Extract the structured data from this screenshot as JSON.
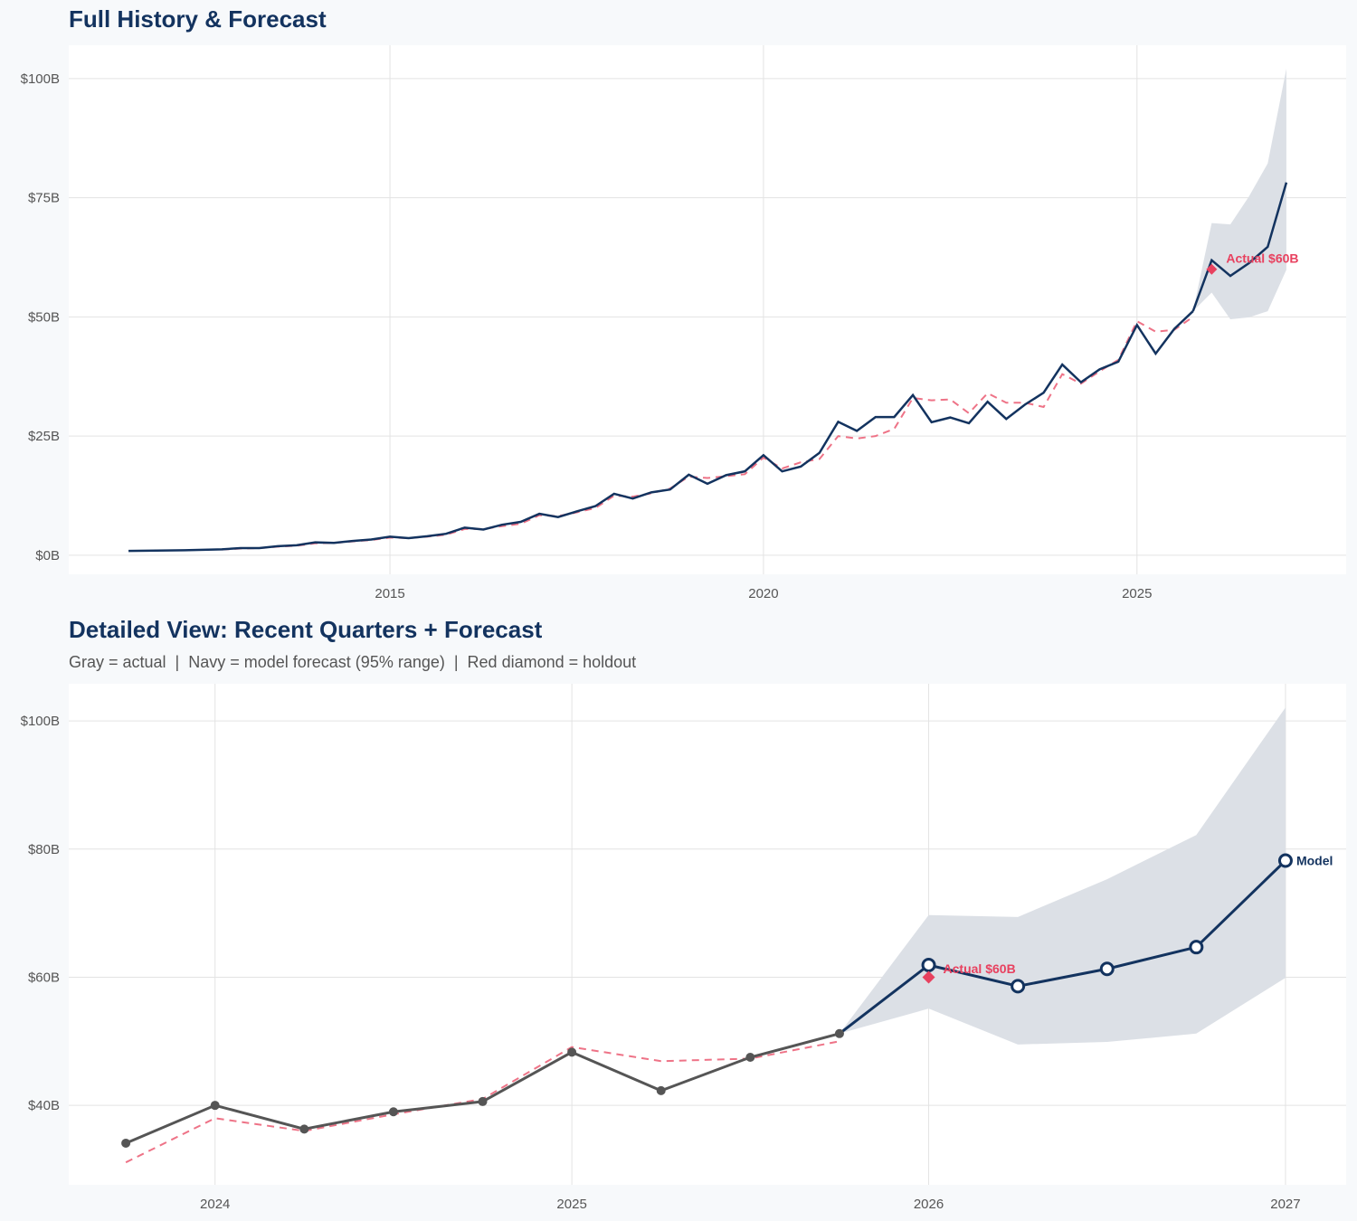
{
  "colors": {
    "navy": "#13335f",
    "gray": "#555555",
    "red": "#e8415f",
    "fitted": "#ee7387",
    "band": "#dce0e6"
  },
  "chart_data": [
    {
      "type": "line",
      "title": "Full History & Forecast",
      "xlim": [
        2010.7,
        2027.8
      ],
      "ylim": [
        -4,
        107
      ],
      "x_ticks": [
        {
          "value": 2015,
          "label": "2015"
        },
        {
          "value": 2020,
          "label": "2020"
        },
        {
          "value": 2025,
          "label": "2025"
        }
      ],
      "y_ticks": [
        {
          "value": 0,
          "label": "$0B"
        },
        {
          "value": 25,
          "label": "$25B"
        },
        {
          "value": 50,
          "label": "$50B"
        },
        {
          "value": 75,
          "label": "$75B"
        },
        {
          "value": 100,
          "label": "$100B"
        }
      ],
      "grid": true,
      "actual": {
        "x": [
          2011.5,
          2011.75,
          2012,
          2012.25,
          2012.5,
          2012.75,
          2013,
          2013.25,
          2013.5,
          2013.75,
          2014,
          2014.25,
          2014.5,
          2014.75,
          2015,
          2015.25,
          2015.5,
          2015.75,
          2016,
          2016.25,
          2016.5,
          2016.75,
          2017,
          2017.25,
          2017.5,
          2017.75,
          2018,
          2018.25,
          2018.5,
          2018.75,
          2019,
          2019.25,
          2019.5,
          2019.75,
          2020,
          2020.25,
          2020.5,
          2020.75,
          2021,
          2021.25,
          2021.5,
          2021.75,
          2022,
          2022.25,
          2022.5,
          2022.75,
          2023,
          2023.25,
          2023.5,
          2023.75,
          2024,
          2024.25,
          2024.5,
          2024.75,
          2025,
          2025.25,
          2025.5,
          2025.75
        ],
        "y": [
          0.9,
          0.95,
          1.0,
          1.05,
          1.15,
          1.25,
          1.5,
          1.5,
          1.9,
          2.1,
          2.7,
          2.6,
          3.0,
          3.3,
          3.9,
          3.6,
          4.0,
          4.5,
          5.8,
          5.4,
          6.4,
          7.0,
          8.7,
          8.0,
          9.2,
          10.3,
          12.9,
          11.9,
          13.2,
          13.8,
          16.9,
          15.0,
          16.8,
          17.6,
          21.0,
          17.6,
          18.6,
          21.5,
          28.0,
          26.1,
          29.0,
          29.0,
          33.6,
          27.9,
          28.9,
          27.7,
          32.2,
          28.6,
          31.6,
          34.1,
          40.0,
          36.3,
          39.0,
          40.6,
          48.3,
          42.3,
          47.5,
          51.2
        ]
      },
      "fitted": {
        "x": [
          2012.75,
          2013,
          2013.25,
          2013.5,
          2013.75,
          2014,
          2014.25,
          2014.5,
          2014.75,
          2015,
          2015.25,
          2015.5,
          2015.75,
          2016,
          2016.25,
          2016.5,
          2016.75,
          2017,
          2017.25,
          2017.5,
          2017.75,
          2018,
          2018.25,
          2018.5,
          2018.75,
          2019,
          2019.25,
          2019.5,
          2019.75,
          2020,
          2020.25,
          2020.5,
          2020.75,
          2021,
          2021.25,
          2021.5,
          2021.75,
          2022,
          2022.25,
          2022.5,
          2022.75,
          2023,
          2023.25,
          2023.5,
          2023.75,
          2024,
          2024.25,
          2024.5,
          2024.75,
          2025,
          2025.25,
          2025.5,
          2025.75
        ],
        "y": [
          1.2,
          1.4,
          1.5,
          1.8,
          2.0,
          2.5,
          2.6,
          2.9,
          3.2,
          3.7,
          3.6,
          3.9,
          4.3,
          5.5,
          5.5,
          6.1,
          6.6,
          8.4,
          8.2,
          9.0,
          9.9,
          12.5,
          12.3,
          13.0,
          14.0,
          16.5,
          16.2,
          16.6,
          17.0,
          20.5,
          18.2,
          19.5,
          20.2,
          25.0,
          24.5,
          25.0,
          26.5,
          33.0,
          32.5,
          32.7,
          29.8,
          34.0,
          32.0,
          32.0,
          31.1,
          38.0,
          36.0,
          38.6,
          41.0,
          49.1,
          46.9,
          47.3,
          50.0
        ]
      },
      "forecast": {
        "x": [
          2025.75,
          2026,
          2026.25,
          2026.5,
          2026.75,
          2027
        ],
        "y": [
          51.2,
          61.9,
          58.6,
          61.3,
          64.7,
          78.2
        ],
        "lower": [
          51.2,
          55.1,
          49.5,
          49.9,
          51.2,
          59.9
        ],
        "upper": [
          51.2,
          69.7,
          69.4,
          75.3,
          82.2,
          102.1
        ]
      },
      "holdout": {
        "x": 2026,
        "y": 60,
        "label": "Actual $60B"
      }
    },
    {
      "type": "line",
      "title": "Detailed View: Recent Quarters + Forecast",
      "subtitle": "Gray = actual  |  Navy = model forecast (95% range)  |  Red diamond = holdout",
      "xlim": [
        2023.59,
        2027.17
      ],
      "ylim": [
        27.6,
        105.8
      ],
      "x_ticks": [
        {
          "value": 2024,
          "label": "2024"
        },
        {
          "value": 2025,
          "label": "2025"
        },
        {
          "value": 2026,
          "label": "2026"
        },
        {
          "value": 2027,
          "label": "2027"
        }
      ],
      "y_ticks": [
        {
          "value": 40,
          "label": "$40B"
        },
        {
          "value": 60,
          "label": "$60B"
        },
        {
          "value": 80,
          "label": "$80B"
        },
        {
          "value": 100,
          "label": "$100B"
        }
      ],
      "grid": true,
      "actual": {
        "x": [
          2023.75,
          2024,
          2024.25,
          2024.5,
          2024.75,
          2025,
          2025.25,
          2025.5,
          2025.75
        ],
        "y": [
          34.1,
          40.0,
          36.3,
          39.0,
          40.6,
          48.3,
          42.3,
          47.5,
          51.2
        ]
      },
      "fitted": {
        "x": [
          2023.75,
          2024,
          2024.25,
          2024.5,
          2024.75,
          2025,
          2025.25,
          2025.5,
          2025.75
        ],
        "y": [
          31.1,
          38.0,
          36.0,
          38.6,
          41.0,
          49.1,
          46.9,
          47.3,
          50.0
        ]
      },
      "forecast": {
        "x": [
          2025.75,
          2026,
          2026.25,
          2026.5,
          2026.75,
          2027
        ],
        "y": [
          51.2,
          61.9,
          58.6,
          61.3,
          64.7,
          78.2
        ],
        "lower": [
          51.2,
          55.1,
          49.5,
          49.9,
          51.2,
          59.9
        ],
        "upper": [
          51.2,
          69.7,
          69.4,
          75.3,
          82.2,
          102.1
        ],
        "end_label": "Model"
      },
      "holdout": {
        "x": 2026,
        "y": 60,
        "label": "Actual $60B"
      }
    }
  ]
}
